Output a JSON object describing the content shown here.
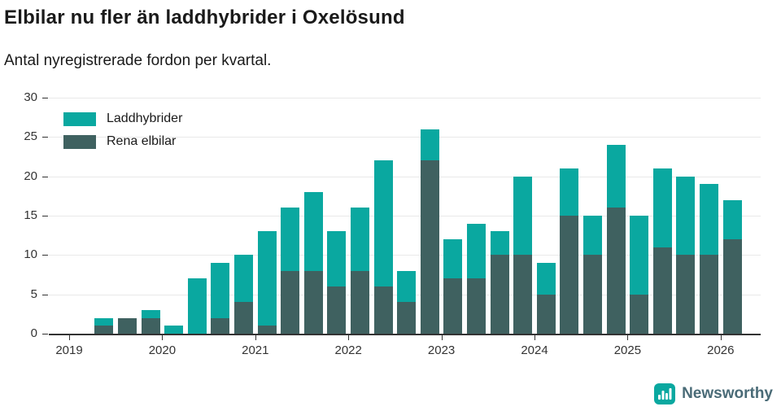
{
  "header": {
    "title": "Elbilar nu fler än laddhybrider i Oxelösund",
    "subtitle": "Antal nyregistrerade fordon per kvartal."
  },
  "legend": {
    "items": [
      {
        "label": "Laddhybrider",
        "color": "#0aa8a0"
      },
      {
        "label": "Rena elbilar",
        "color": "#3f6160"
      }
    ]
  },
  "chart_data": {
    "type": "bar",
    "stacked": true,
    "title": "Elbilar nu fler än laddhybrider i Oxelösund",
    "subtitle": "Antal nyregistrerade fordon per kvartal.",
    "xlabel": "",
    "ylabel": "",
    "x": [
      "2019 Q2",
      "2019 Q3",
      "2019 Q4",
      "2020 Q1",
      "2020 Q2",
      "2020 Q3",
      "2020 Q4",
      "2021 Q1",
      "2021 Q2",
      "2021 Q3",
      "2021 Q4",
      "2022 Q1",
      "2022 Q2",
      "2022 Q3",
      "2022 Q4",
      "2023 Q1",
      "2023 Q2",
      "2023 Q3",
      "2023 Q4",
      "2024 Q1",
      "2024 Q2",
      "2024 Q3",
      "2024 Q4",
      "2025 Q1",
      "2025 Q2",
      "2025 Q3",
      "2025 Q4",
      "2026 Q1"
    ],
    "series": [
      {
        "name": "Rena elbilar",
        "color": "#3f6160",
        "values": [
          1,
          2,
          2,
          0,
          0,
          2,
          4,
          1,
          8,
          8,
          6,
          8,
          6,
          4,
          22,
          7,
          7,
          10,
          10,
          5,
          15,
          10,
          16,
          5,
          11,
          10,
          10,
          12
        ]
      },
      {
        "name": "Laddhybrider",
        "color": "#0aa8a0",
        "values": [
          1,
          0,
          1,
          1,
          7,
          7,
          6,
          12,
          8,
          10,
          7,
          8,
          16,
          4,
          4,
          5,
          7,
          3,
          10,
          4,
          6,
          5,
          8,
          10,
          10,
          10,
          9,
          5
        ]
      }
    ],
    "totals": [
      2,
      2,
      3,
      1,
      7,
      9,
      10,
      13,
      16,
      18,
      13,
      16,
      22,
      8,
      26,
      12,
      14,
      13,
      20,
      9,
      21,
      15,
      24,
      15,
      21,
      20,
      19,
      17
    ],
    "xticks": [
      "2019",
      "2020",
      "2021",
      "2022",
      "2023",
      "2024",
      "2025",
      "2026"
    ],
    "yticks": [
      0,
      5,
      10,
      15,
      20,
      25,
      30
    ],
    "ylim": [
      0,
      30
    ],
    "grid": true,
    "legend_position": "top-left"
  },
  "footer": {
    "brand": "Newsworthy"
  },
  "colors": {
    "accent": "#0aa8a0",
    "dark_series": "#3f6160",
    "brand_text": "#4a6b77",
    "axis": "#333333"
  }
}
